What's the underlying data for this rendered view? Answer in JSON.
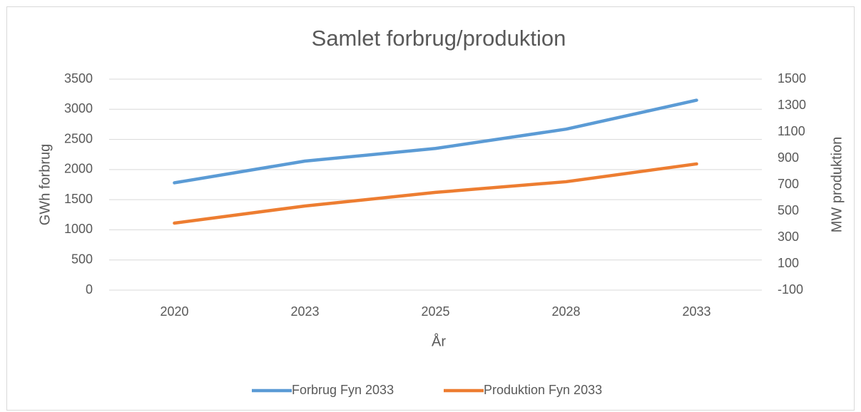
{
  "chart_data": {
    "type": "line",
    "title": "Samlet forbrug/produktion",
    "x_label": "År",
    "y_label": "GWh forbrug",
    "y2_label": "MW produktion",
    "categories": [
      "2020",
      "2023",
      "2025",
      "2028",
      "2033"
    ],
    "series": [
      {
        "name": "Forbrug Fyn 2033",
        "color": "#5b9bd5",
        "values": [
          1780,
          2140,
          2350,
          2670,
          3150
        ]
      },
      {
        "name": "Produktion Fyn 2033",
        "color": "#ed7d31",
        "axis": "y2",
        "values": [
          408,
          538,
          641,
          722,
          857
        ]
      }
    ],
    "ylim": [
      0,
      3500
    ],
    "yticks": [
      0,
      500,
      1000,
      1500,
      2000,
      2500,
      3000,
      3500
    ],
    "y2lim": [
      -100,
      1500
    ],
    "y2ticks": [
      -100,
      100,
      300,
      500,
      700,
      900,
      1100,
      1300,
      1500
    ],
    "grid": true,
    "legend": "bottom"
  }
}
